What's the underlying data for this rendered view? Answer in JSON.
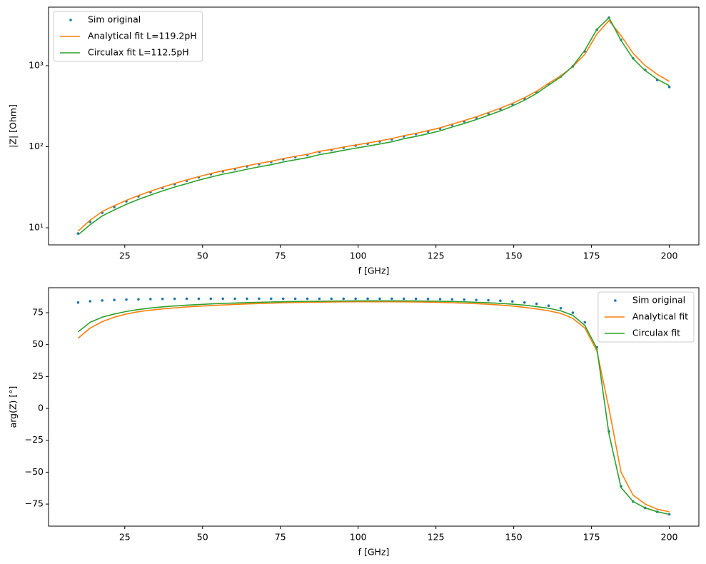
{
  "chart_data": [
    {
      "type": "line",
      "yscale": "log",
      "grid": false,
      "legend": "upper left",
      "xlabel": "f [GHz]",
      "ylabel": "|Z| [Ohm]",
      "xlim": [
        0.5,
        209.5
      ],
      "ylim": [
        6.15,
        5270
      ],
      "xticks": [
        25,
        50,
        75,
        100,
        125,
        150,
        175,
        200
      ],
      "yticks": [
        {
          "value": 10,
          "label": "10¹"
        },
        {
          "value": 100,
          "label": "10²"
        },
        {
          "value": 1000,
          "label": "10³"
        }
      ],
      "x": [
        10,
        13.88,
        17.76,
        21.63,
        25.51,
        29.39,
        33.27,
        37.14,
        41.02,
        44.9,
        48.78,
        52.65,
        56.53,
        60.41,
        64.29,
        68.16,
        72.04,
        75.92,
        79.8,
        83.67,
        87.55,
        91.43,
        95.31,
        99.18,
        103.06,
        106.94,
        110.82,
        114.69,
        118.57,
        122.45,
        126.33,
        130.2,
        134.08,
        137.96,
        141.84,
        145.71,
        149.59,
        153.47,
        157.35,
        161.22,
        165.1,
        168.98,
        172.86,
        176.73,
        180.61,
        184.49,
        188.37,
        192.24,
        196.12,
        200
      ],
      "series": [
        {
          "name": "Sim original",
          "mode": "markers",
          "color": "#1f77b4",
          "values": [
            8.5,
            11.8,
            15.3,
            18,
            21.2,
            24.4,
            27.5,
            31,
            34.5,
            38,
            42,
            45.8,
            49.7,
            53,
            57.2,
            61,
            64.8,
            70,
            74.5,
            79,
            86,
            91,
            97,
            103,
            109,
            116,
            123,
            134,
            143,
            154,
            167,
            186,
            205,
            228,
            257,
            290,
            333,
            390,
            470,
            590,
            735,
            980,
            1500,
            2770,
            3900,
            2080,
            1230,
            885,
            665,
            545
          ]
        },
        {
          "name": "Analytical fit  L=119.2pH",
          "mode": "line",
          "color": "#ff7f0e",
          "values": [
            9.1,
            12.4,
            15.9,
            18.7,
            21.8,
            25,
            28.2,
            31.7,
            35.3,
            38.9,
            42.8,
            46.7,
            50.6,
            54.1,
            58.3,
            62.2,
            66.1,
            71.4,
            76,
            80.6,
            87.7,
            92.8,
            99,
            105,
            111,
            118,
            126,
            137,
            146,
            158,
            171,
            190,
            210,
            234,
            264,
            298,
            343,
            402,
            484,
            605,
            750,
            970,
            1380,
            2450,
            3600,
            2350,
            1420,
            1000,
            780,
            640
          ]
        },
        {
          "name": "Circulax fit  L=112.5pH",
          "mode": "line",
          "color": "#2ca02c",
          "values": [
            8.2,
            10.9,
            14,
            16.6,
            19.5,
            22.4,
            25.3,
            28.5,
            31.8,
            35,
            38.7,
            42.2,
            45.8,
            48.9,
            52.8,
            56.4,
            60,
            64.8,
            69,
            73.3,
            79.8,
            84.5,
            90.2,
            96,
            101.6,
            108,
            115,
            125.5,
            134,
            144.6,
            157,
            175,
            193.5,
            216,
            244,
            276,
            318,
            375,
            455,
            575,
            725,
            985,
            1550,
            2800,
            3900,
            2050,
            1220,
            870,
            680,
            565
          ]
        }
      ]
    },
    {
      "type": "line",
      "yscale": "linear",
      "grid": false,
      "legend": "upper right",
      "xlabel": "f [GHz]",
      "ylabel": "arg(Z) [°]",
      "xlim": [
        0.5,
        209.5
      ],
      "ylim": [
        -92.3,
        94.6
      ],
      "xticks": [
        25,
        50,
        75,
        100,
        125,
        150,
        175,
        200
      ],
      "yticks": [
        {
          "value": -75,
          "label": "−75"
        },
        {
          "value": -50,
          "label": "−50"
        },
        {
          "value": -25,
          "label": "−25"
        },
        0,
        25,
        50,
        75
      ],
      "x": [
        10,
        13.88,
        17.76,
        21.63,
        25.51,
        29.39,
        33.27,
        37.14,
        41.02,
        44.9,
        48.78,
        52.65,
        56.53,
        60.41,
        64.29,
        68.16,
        72.04,
        75.92,
        79.8,
        83.67,
        87.55,
        91.43,
        95.31,
        99.18,
        103.06,
        106.94,
        110.82,
        114.69,
        118.57,
        122.45,
        126.33,
        130.2,
        134.08,
        137.96,
        141.84,
        145.71,
        149.59,
        153.47,
        157.35,
        161.22,
        165.1,
        168.98,
        172.86,
        176.73,
        180.61,
        184.49,
        188.37,
        192.24,
        196.12,
        200
      ],
      "series": [
        {
          "name": "Sim original",
          "mode": "markers",
          "color": "#1f77b4",
          "values": [
            83,
            84,
            84.6,
            85,
            85.3,
            85.5,
            85.7,
            85.8,
            85.9,
            86,
            86,
            86,
            86,
            86,
            86,
            86,
            86,
            86,
            86,
            86,
            86,
            86,
            86,
            86,
            86,
            86,
            86,
            86,
            85.9,
            85.8,
            85.7,
            85.5,
            85.3,
            85,
            84.8,
            84.4,
            83.8,
            83,
            82,
            80.5,
            78.5,
            75,
            67.5,
            48,
            -18,
            -61,
            -73,
            -78,
            -81,
            -83
          ]
        },
        {
          "name": "Analytical fit",
          "mode": "line",
          "color": "#ff7f0e",
          "values": [
            55,
            63,
            68,
            71.5,
            74,
            75.8,
            77,
            78,
            78.8,
            79.5,
            80.1,
            80.6,
            81.1,
            81.5,
            81.9,
            82.2,
            82.5,
            82.8,
            83,
            83.2,
            83.3,
            83.4,
            83.5,
            83.6,
            83.6,
            83.6,
            83.6,
            83.5,
            83.4,
            83.3,
            83.1,
            82.8,
            82.5,
            82.1,
            81.6,
            81,
            80.2,
            79.2,
            78,
            76.5,
            74.5,
            70.5,
            63,
            45,
            0,
            -50,
            -68,
            -75,
            -79,
            -81
          ]
        },
        {
          "name": "Circulax fit",
          "mode": "line",
          "color": "#2ca02c",
          "values": [
            60,
            67.5,
            71.5,
            74,
            76,
            77.5,
            78.7,
            79.6,
            80.3,
            80.9,
            81.4,
            81.9,
            82.3,
            82.6,
            82.9,
            83.2,
            83.4,
            83.6,
            83.8,
            83.9,
            84,
            84.1,
            84.2,
            84.3,
            84.3,
            84.3,
            84.3,
            84.3,
            84.2,
            84.1,
            84,
            83.8,
            83.5,
            83.2,
            82.8,
            82.3,
            81.7,
            80.9,
            79.8,
            78.5,
            76.5,
            73,
            65,
            47,
            -20,
            -62,
            -73,
            -78,
            -81,
            -83
          ]
        }
      ]
    }
  ]
}
